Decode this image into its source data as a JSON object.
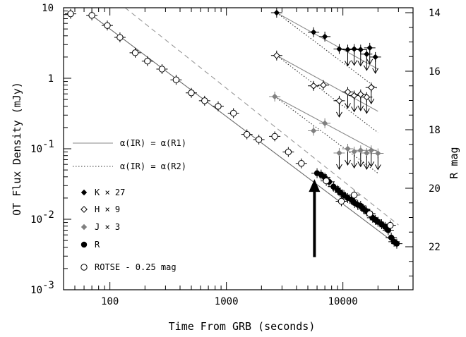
{
  "chart_data": {
    "type": "scatter",
    "title": "",
    "xlabel": "Time From GRB (seconds)",
    "ylabel": "OT Flux Density (mJy)",
    "y2label": "R mag",
    "x_scale": "log",
    "y_scale": "log",
    "xlim": [
      40,
      40000
    ],
    "ylim": [
      0.001,
      10
    ],
    "y2lim": [
      14,
      22
    ],
    "x_ticks": [
      {
        "value": 100,
        "label": "100"
      },
      {
        "value": 1000,
        "label": "1000"
      },
      {
        "value": 10000,
        "label": "10000"
      }
    ],
    "y_ticks": [
      {
        "value": 10,
        "label": "10"
      },
      {
        "value": 1,
        "label": "1"
      },
      {
        "value": 0.1,
        "label": "10",
        "exp": "-1"
      },
      {
        "value": 0.01,
        "label": "10",
        "exp": "-2"
      },
      {
        "value": 0.001,
        "label": "10",
        "exp": "-3"
      }
    ],
    "y2_ticks": [
      {
        "value": 14,
        "label": "14"
      },
      {
        "value": 16,
        "label": "16"
      },
      {
        "value": 18,
        "label": "18"
      },
      {
        "value": 20,
        "label": "20"
      },
      {
        "value": 22,
        "label": "22"
      }
    ],
    "legend_position": "left",
    "lines": [
      {
        "name": "α(IR) = α(R1)",
        "style": "solid",
        "color": "#8a8a8a"
      },
      {
        "name": "α(IR) = α(R2)",
        "style": "dotted",
        "color": "#333333"
      }
    ],
    "series": [
      {
        "name": "K × 27",
        "marker": "filled-diamond",
        "color": "#000000",
        "points": [
          {
            "x": 2700,
            "y": 8.5
          },
          {
            "x": 5600,
            "y": 4.5
          },
          {
            "x": 7000,
            "y": 3.9
          },
          {
            "x": 9300,
            "y": 2.6
          },
          {
            "x": 11000,
            "y": 2.55,
            "upper_limit": true
          },
          {
            "x": 12500,
            "y": 2.6,
            "upper_limit": true
          },
          {
            "x": 14200,
            "y": 2.55,
            "upper_limit": true
          },
          {
            "x": 16000,
            "y": 2.2,
            "upper_limit": true
          },
          {
            "x": 17000,
            "y": 2.7,
            "upper_limit": true
          },
          {
            "x": 19000,
            "y": 2.0,
            "upper_limit": true
          }
        ]
      },
      {
        "name": "H × 9",
        "marker": "open-diamond",
        "color": "#000000",
        "points": [
          {
            "x": 2700,
            "y": 2.1
          },
          {
            "x": 5600,
            "y": 0.78
          },
          {
            "x": 6800,
            "y": 0.8
          },
          {
            "x": 9300,
            "y": 0.48,
            "upper_limit": true
          },
          {
            "x": 11000,
            "y": 0.64,
            "upper_limit": true
          },
          {
            "x": 12500,
            "y": 0.57,
            "upper_limit": true
          },
          {
            "x": 14200,
            "y": 0.59,
            "upper_limit": true
          },
          {
            "x": 16000,
            "y": 0.54,
            "upper_limit": true
          },
          {
            "x": 17500,
            "y": 0.74,
            "upper_limit": true
          }
        ]
      },
      {
        "name": "J × 3",
        "marker": "gray-diamond",
        "color": "#808080",
        "points": [
          {
            "x": 2600,
            "y": 0.55
          },
          {
            "x": 5600,
            "y": 0.18
          },
          {
            "x": 7000,
            "y": 0.23
          },
          {
            "x": 9300,
            "y": 0.087,
            "upper_limit": true
          },
          {
            "x": 11000,
            "y": 0.1,
            "upper_limit": true
          },
          {
            "x": 12500,
            "y": 0.091,
            "upper_limit": true
          },
          {
            "x": 14200,
            "y": 0.095,
            "upper_limit": true
          },
          {
            "x": 16000,
            "y": 0.087,
            "upper_limit": true
          },
          {
            "x": 17500,
            "y": 0.095,
            "upper_limit": true
          },
          {
            "x": 20000,
            "y": 0.086,
            "upper_limit": true
          }
        ]
      },
      {
        "name": "R",
        "marker": "filled-circle",
        "color": "#000000",
        "points": [
          {
            "x": 6000,
            "y": 0.045
          },
          {
            "x": 6500,
            "y": 0.043
          },
          {
            "x": 7000,
            "y": 0.039
          },
          {
            "x": 7600,
            "y": 0.034
          },
          {
            "x": 8300,
            "y": 0.029
          },
          {
            "x": 9000,
            "y": 0.026
          },
          {
            "x": 9500,
            "y": 0.024
          },
          {
            "x": 10200,
            "y": 0.022
          },
          {
            "x": 11000,
            "y": 0.02
          },
          {
            "x": 11800,
            "y": 0.019
          },
          {
            "x": 12600,
            "y": 0.017
          },
          {
            "x": 13400,
            "y": 0.016
          },
          {
            "x": 14200,
            "y": 0.0155
          },
          {
            "x": 15000,
            "y": 0.014
          },
          {
            "x": 16000,
            "y": 0.013
          },
          {
            "x": 17000,
            "y": 0.012
          },
          {
            "x": 18000,
            "y": 0.0105
          },
          {
            "x": 19000,
            "y": 0.0098
          },
          {
            "x": 20000,
            "y": 0.0092
          },
          {
            "x": 21500,
            "y": 0.0085
          },
          {
            "x": 23000,
            "y": 0.0078
          },
          {
            "x": 24500,
            "y": 0.007
          },
          {
            "x": 26000,
            "y": 0.0055
          },
          {
            "x": 27500,
            "y": 0.0048
          },
          {
            "x": 29000,
            "y": 0.0045
          }
        ]
      },
      {
        "name": "ROTSE - 0.25 mag",
        "marker": "open-circle",
        "color": "#000000",
        "points": [
          {
            "x": 46,
            "y": 8.2
          },
          {
            "x": 70,
            "y": 7.8
          },
          {
            "x": 95,
            "y": 5.6
          },
          {
            "x": 122,
            "y": 3.8
          },
          {
            "x": 165,
            "y": 2.3
          },
          {
            "x": 210,
            "y": 1.75
          },
          {
            "x": 280,
            "y": 1.35
          },
          {
            "x": 370,
            "y": 0.95
          },
          {
            "x": 500,
            "y": 0.62
          },
          {
            "x": 650,
            "y": 0.48
          },
          {
            "x": 850,
            "y": 0.4
          },
          {
            "x": 1150,
            "y": 0.32
          },
          {
            "x": 1500,
            "y": 0.16
          },
          {
            "x": 1900,
            "y": 0.135
          },
          {
            "x": 2600,
            "y": 0.15
          },
          {
            "x": 3400,
            "y": 0.09
          },
          {
            "x": 4400,
            "y": 0.062
          },
          {
            "x": 7200,
            "y": 0.035
          },
          {
            "x": 9700,
            "y": 0.018
          },
          {
            "x": 12500,
            "y": 0.022
          },
          {
            "x": 17000,
            "y": 0.012
          },
          {
            "x": 25500,
            "y": 0.0082
          }
        ]
      }
    ],
    "model_lines": [
      {
        "style": "dotted",
        "color": "#333333",
        "points": [
          [
            2700,
            8.5
          ],
          [
            20000,
            0.7
          ]
        ]
      },
      {
        "style": "dotted",
        "color": "#333333",
        "points": [
          [
            2700,
            2.1
          ],
          [
            20000,
            0.17
          ]
        ]
      },
      {
        "style": "dotted",
        "color": "#333333",
        "points": [
          [
            2600,
            0.55
          ],
          [
            20000,
            0.045
          ]
        ]
      },
      {
        "style": "solid",
        "color": "#8a8a8a",
        "points": [
          [
            2700,
            8.5
          ],
          [
            20000,
            1.35
          ]
        ]
      },
      {
        "style": "solid",
        "color": "#8a8a8a",
        "points": [
          [
            2700,
            2.1
          ],
          [
            20000,
            0.34
          ]
        ]
      },
      {
        "style": "solid",
        "color": "#8a8a8a",
        "points": [
          [
            2600,
            0.55
          ],
          [
            20000,
            0.09
          ]
        ]
      },
      {
        "style": "solid",
        "color": "#6a6a6a",
        "points": [
          [
            70,
            7.8
          ],
          [
            30000,
            0.0042
          ]
        ]
      },
      {
        "style": "dashed",
        "color": "#999999",
        "points": [
          [
            135,
            10
          ],
          [
            30000,
            0.0083
          ]
        ]
      }
    ],
    "annotations": [
      {
        "type": "arrow",
        "direction": "up",
        "x": 5700,
        "y_from": 0.0029,
        "y_to": 0.037
      }
    ]
  }
}
